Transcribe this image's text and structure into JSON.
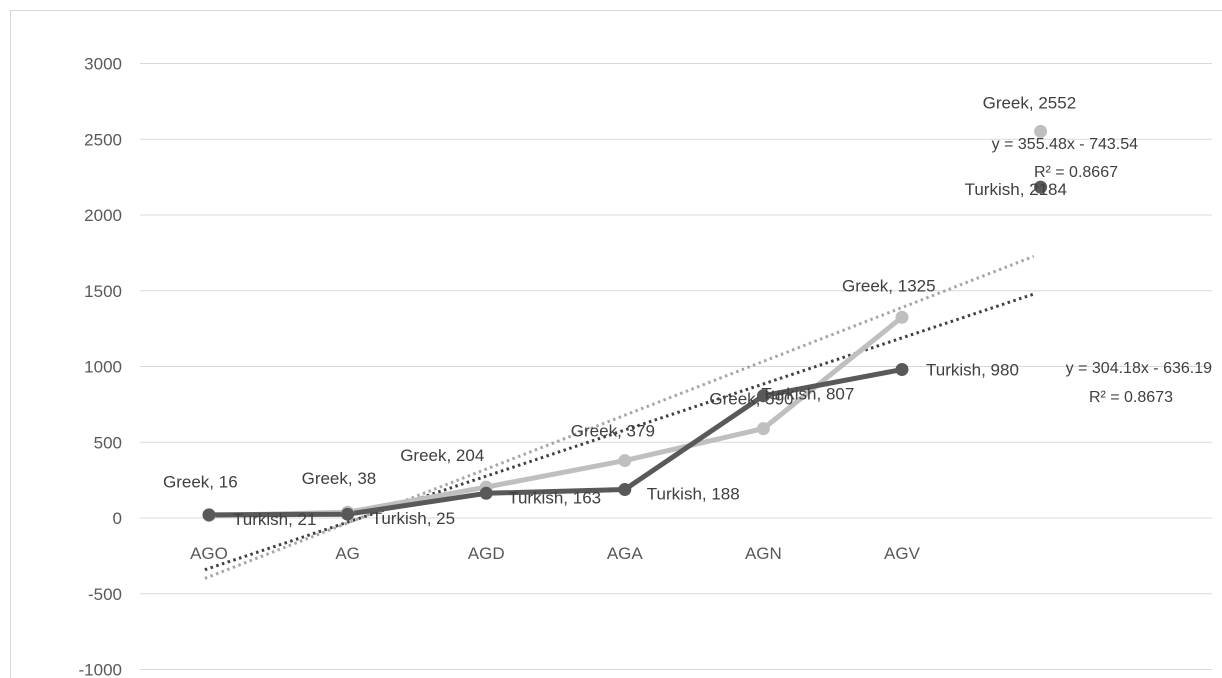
{
  "chart_data": {
    "type": "line",
    "categories": [
      "AGO",
      "AG",
      "AGD",
      "AGA",
      "AGN",
      "AGV",
      ""
    ],
    "series": [
      {
        "name": "Greek",
        "color": "#bfbfbf",
        "values": [
          16,
          38,
          204,
          379,
          590,
          1325,
          2552
        ],
        "labels": [
          "Greek, 16",
          "Greek, 38",
          "Greek, 204",
          "Greek, 379",
          "Greek, 590",
          "Greek, 1325",
          "Greek, 2552"
        ],
        "trendline": {
          "style": "dotted",
          "slope": 355.48,
          "intercept": -743.54,
          "equation": "y = 355.48x - 743.54",
          "r2": "R² = 0.8667"
        }
      },
      {
        "name": "Turkish",
        "color": "#595959",
        "values": [
          21,
          25,
          163,
          188,
          807,
          980,
          2184
        ],
        "labels": [
          "Turkish, 21",
          "Turkish, 25",
          "Turkish, 163",
          "Turkish, 188",
          "Turkish, 807",
          "Turkish, 980",
          "Turkish, 2184"
        ],
        "trendline": {
          "style": "dotted",
          "slope": 304.18,
          "intercept": -636.19,
          "equation": "y = 304.18x - 636.19",
          "r2": "R² = 0.8673"
        }
      }
    ],
    "connected_points": 6,
    "ylim": [
      -1000,
      3000
    ],
    "yticks": [
      -1000,
      -500,
      0,
      500,
      1000,
      1500,
      2000,
      2500,
      3000
    ],
    "grid": true,
    "legend": "none"
  }
}
